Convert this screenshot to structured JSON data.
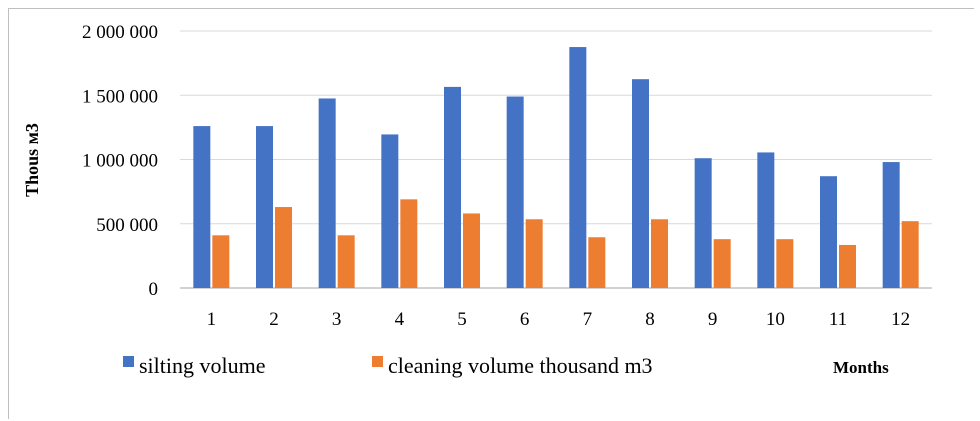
{
  "chart_data": {
    "type": "bar",
    "categories": [
      "1",
      "2",
      "3",
      "4",
      "5",
      "6",
      "7",
      "8",
      "9",
      "10",
      "11",
      "12"
    ],
    "series": [
      {
        "name": "silting volume",
        "color": "#4472C4",
        "values": [
          1260000,
          1260000,
          1475000,
          1195000,
          1565000,
          1490000,
          1875000,
          1625000,
          1010000,
          1055000,
          870000,
          980000
        ]
      },
      {
        "name": "cleaning volume thousand m3",
        "color": "#ED7D31",
        "values": [
          410000,
          630000,
          410000,
          690000,
          580000,
          535000,
          395000,
          535000,
          380000,
          380000,
          335000,
          520000
        ]
      }
    ],
    "ylim": [
      0,
      2000000
    ],
    "yticks": [
      0,
      500000,
      1000000,
      1500000,
      2000000
    ],
    "ytick_labels": [
      "0",
      "500 000",
      "1 000 000",
      "1 500 000",
      "2 000 000"
    ],
    "ylabel": "Thous м3",
    "xlabel": "Months",
    "grid": true,
    "legend_position": "bottom-left"
  }
}
